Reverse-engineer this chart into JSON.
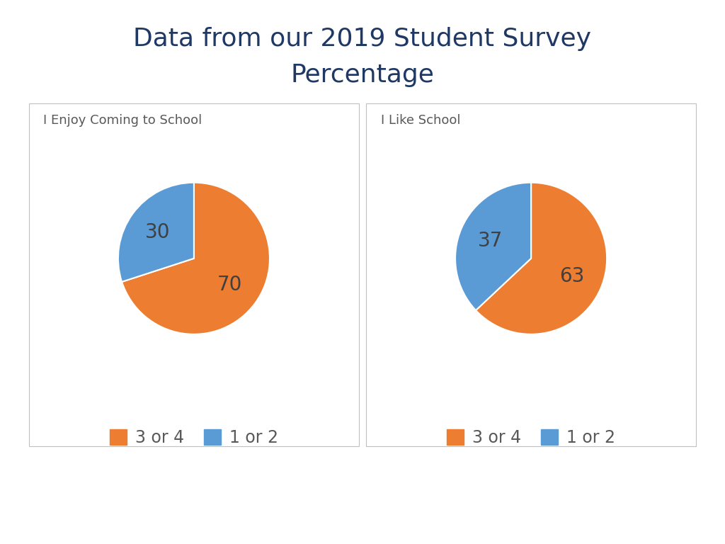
{
  "title": "Data from our 2019 Student Survey\nPercentage",
  "title_color": "#1F3864",
  "title_fontsize": 26,
  "charts": [
    {
      "label": "I Enjoy Coming to School",
      "values": [
        70,
        30
      ],
      "colors": [
        "#ED7D31",
        "#5B9BD5"
      ],
      "autopct_labels": [
        "70",
        "30"
      ],
      "legend_labels": [
        "3 or 4",
        "1 or 2"
      ]
    },
    {
      "label": "I Like School",
      "values": [
        63,
        37
      ],
      "colors": [
        "#ED7D31",
        "#5B9BD5"
      ],
      "autopct_labels": [
        "63",
        "37"
      ],
      "legend_labels": [
        "3 or 4",
        "1 or 2"
      ]
    }
  ],
  "pie_label_color": "#404040",
  "pie_label_fontsize": 20,
  "subtitle_fontsize": 13,
  "subtitle_color": "#595959",
  "legend_fontsize": 17,
  "background_color": "#FFFFFF",
  "box_edge_color": "#C0C0C0"
}
